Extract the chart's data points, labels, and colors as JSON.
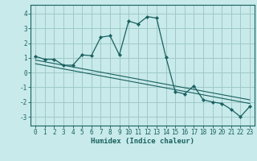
{
  "xlabel": "Humidex (Indice chaleur)",
  "bg_color": "#c8eaea",
  "grid_color": "#a0c8c8",
  "line_color": "#1a6060",
  "xlim": [
    -0.5,
    23.5
  ],
  "ylim": [
    -3.6,
    4.6
  ],
  "yticks": [
    -3,
    -2,
    -1,
    0,
    1,
    2,
    3,
    4
  ],
  "xticks": [
    0,
    1,
    2,
    3,
    4,
    5,
    6,
    7,
    8,
    9,
    10,
    11,
    12,
    13,
    14,
    15,
    16,
    17,
    18,
    19,
    20,
    21,
    22,
    23
  ],
  "curve1_x": [
    0,
    1,
    2,
    3,
    4,
    5,
    6,
    7,
    8,
    9,
    10,
    11,
    12,
    13,
    14,
    15,
    16,
    17,
    18,
    19,
    20,
    21,
    22,
    23
  ],
  "curve1_y": [
    1.1,
    0.9,
    0.9,
    0.5,
    0.5,
    1.2,
    1.15,
    2.4,
    2.5,
    1.2,
    3.5,
    3.3,
    3.8,
    3.7,
    1.05,
    -1.3,
    -1.45,
    -0.9,
    -1.85,
    -2.0,
    -2.1,
    -2.5,
    -3.0,
    -2.3
  ],
  "line2_x": [
    0,
    23
  ],
  "line2_y": [
    0.85,
    -1.85
  ],
  "line3_x": [
    0,
    23
  ],
  "line3_y": [
    0.6,
    -2.1
  ],
  "tick_fontsize": 5.5,
  "xlabel_fontsize": 6.5
}
